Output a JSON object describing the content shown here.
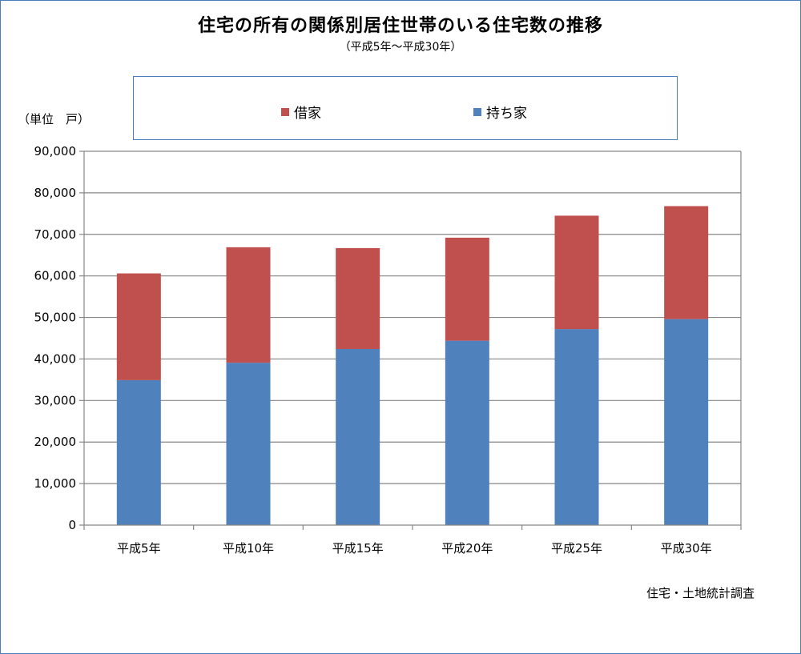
{
  "title": "住宅の所有の関係別居住世帯のいる住宅数の推移",
  "subtitle": "（平成5年～平成30年）",
  "unit_label": "（単位　戸）",
  "source": "住宅・土地統計調査",
  "colors": {
    "rented": "#c0504d",
    "owned": "#4f81bd",
    "grid": "#868686",
    "frame": "#4a7ebb"
  },
  "chart_data": {
    "type": "bar",
    "stacked": true,
    "title": "住宅の所有の関係別居住世帯のいる住宅数の推移",
    "subtitle": "（平成5年～平成30年）",
    "ylabel": "（単位　戸）",
    "ylim": [
      0,
      90000
    ],
    "ytick_step": 10000,
    "yticks": [
      "0",
      "10,000",
      "20,000",
      "30,000",
      "40,000",
      "50,000",
      "60,000",
      "70,000",
      "80,000",
      "90,000"
    ],
    "grid": true,
    "legend_position": "top",
    "categories": [
      "平成5年",
      "平成10年",
      "平成15年",
      "平成20年",
      "平成25年",
      "平成30年"
    ],
    "series": [
      {
        "name": "持ち家",
        "color": "#4f81bd",
        "values": [
          34900,
          39100,
          42400,
          44400,
          47200,
          49600
        ]
      },
      {
        "name": "借家",
        "color": "#c0504d",
        "values": [
          25700,
          27800,
          24300,
          24800,
          27300,
          27200
        ]
      }
    ],
    "legend": [
      {
        "name": "借家",
        "color": "#c0504d"
      },
      {
        "name": "持ち家",
        "color": "#4f81bd"
      }
    ]
  }
}
